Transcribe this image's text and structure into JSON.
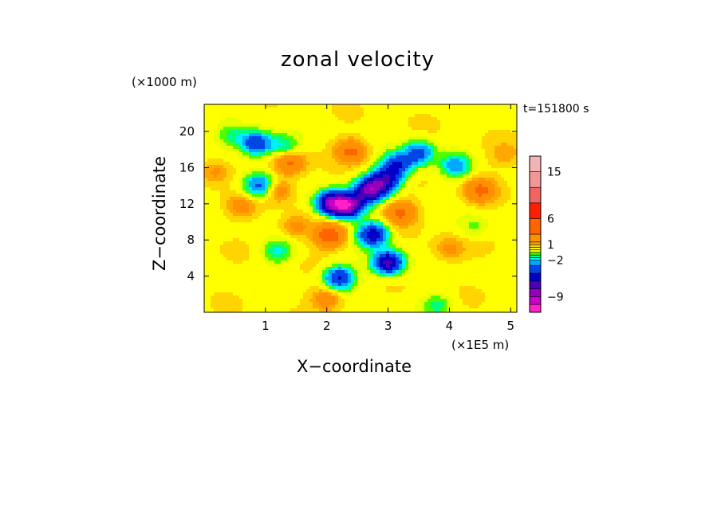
{
  "chart_data": {
    "type": "heatmap",
    "title": "zonal velocity",
    "xlabel": "X−coordinate",
    "ylabel": "Z−coordinate",
    "x_unit_label": "(×1E5 m)",
    "z_unit_label": "(×1000 m)",
    "time_label": "t=151800 s",
    "xlim": [
      0,
      5.1
    ],
    "ylim": [
      0,
      23
    ],
    "x_ticks": [
      1,
      2,
      3,
      4,
      5
    ],
    "y_ticks": [
      4,
      8,
      12,
      16,
      20
    ],
    "colorbar": {
      "levels": [
        -12,
        -10.5,
        -9,
        -7.5,
        -6,
        -4.5,
        -3,
        -2,
        -1.5,
        -1,
        -0.5,
        0,
        0.5,
        1,
        1.5,
        3,
        6,
        9,
        12,
        15,
        18
      ],
      "colors": [
        "#ff20c8",
        "#c800c8",
        "#9400bc",
        "#4b00b4",
        "#0000c8",
        "#0046e6",
        "#00a8ff",
        "#00f0ff",
        "#00ff80",
        "#4cff00",
        "#e4ff00",
        "#ffff00",
        "#ffd400",
        "#ffa800",
        "#ff9100",
        "#ff6400",
        "#ff1e00",
        "#f06464",
        "#f09696",
        "#f0b4b4"
      ],
      "tick_labels": [
        "15",
        "6",
        "1",
        "−2",
        "−9"
      ],
      "tick_values": [
        15,
        6,
        1,
        -2,
        -9
      ]
    },
    "features": [
      {
        "x": 2.35,
        "z": 11.8,
        "u": -9.0
      },
      {
        "x": 2.08,
        "z": 12.1,
        "u": -8.0
      },
      {
        "x": 2.7,
        "z": 13.5,
        "u": -8.0
      },
      {
        "x": 2.95,
        "z": 14.6,
        "u": -6.0
      },
      {
        "x": 3.15,
        "z": 16.3,
        "u": -5.0
      },
      {
        "x": 2.75,
        "z": 8.6,
        "u": -6.0
      },
      {
        "x": 3.0,
        "z": 5.5,
        "u": -7.0
      },
      {
        "x": 2.2,
        "z": 3.8,
        "u": -5.0
      },
      {
        "x": 0.85,
        "z": 18.7,
        "u": -5.0
      },
      {
        "x": 3.5,
        "z": 17.6,
        "u": -4.0
      },
      {
        "x": 4.1,
        "z": 16.2,
        "u": -3.0
      },
      {
        "x": 0.9,
        "z": 14.0,
        "u": -4.0
      },
      {
        "x": 1.3,
        "z": 18.4,
        "u": -2.0
      },
      {
        "x": 1.2,
        "z": 6.7,
        "u": -2.0
      },
      {
        "x": 0.45,
        "z": 19.5,
        "u": -1.5
      },
      {
        "x": 3.8,
        "z": 0.8,
        "u": -1.5
      },
      {
        "x": 4.4,
        "z": 9.5,
        "u": -1.0
      },
      {
        "x": 2.05,
        "z": 8.5,
        "u": 4.0
      },
      {
        "x": 2.4,
        "z": 17.8,
        "u": 3.0
      },
      {
        "x": 1.4,
        "z": 16.5,
        "u": 3.0
      },
      {
        "x": 3.2,
        "z": 11.0,
        "u": 3.0
      },
      {
        "x": 4.5,
        "z": 13.5,
        "u": 3.0
      },
      {
        "x": 1.2,
        "z": 13.5,
        "u": 2.0
      },
      {
        "x": 0.6,
        "z": 11.7,
        "u": 1.5
      },
      {
        "x": 2.0,
        "z": 1.5,
        "u": 2.0
      },
      {
        "x": 1.5,
        "z": 9.5,
        "u": 1.5
      },
      {
        "x": 4.0,
        "z": 7.0,
        "u": 1.5
      },
      {
        "x": 0.2,
        "z": 15.5,
        "u": 1.5
      },
      {
        "x": 4.9,
        "z": 17.5,
        "u": 1.0
      }
    ]
  }
}
